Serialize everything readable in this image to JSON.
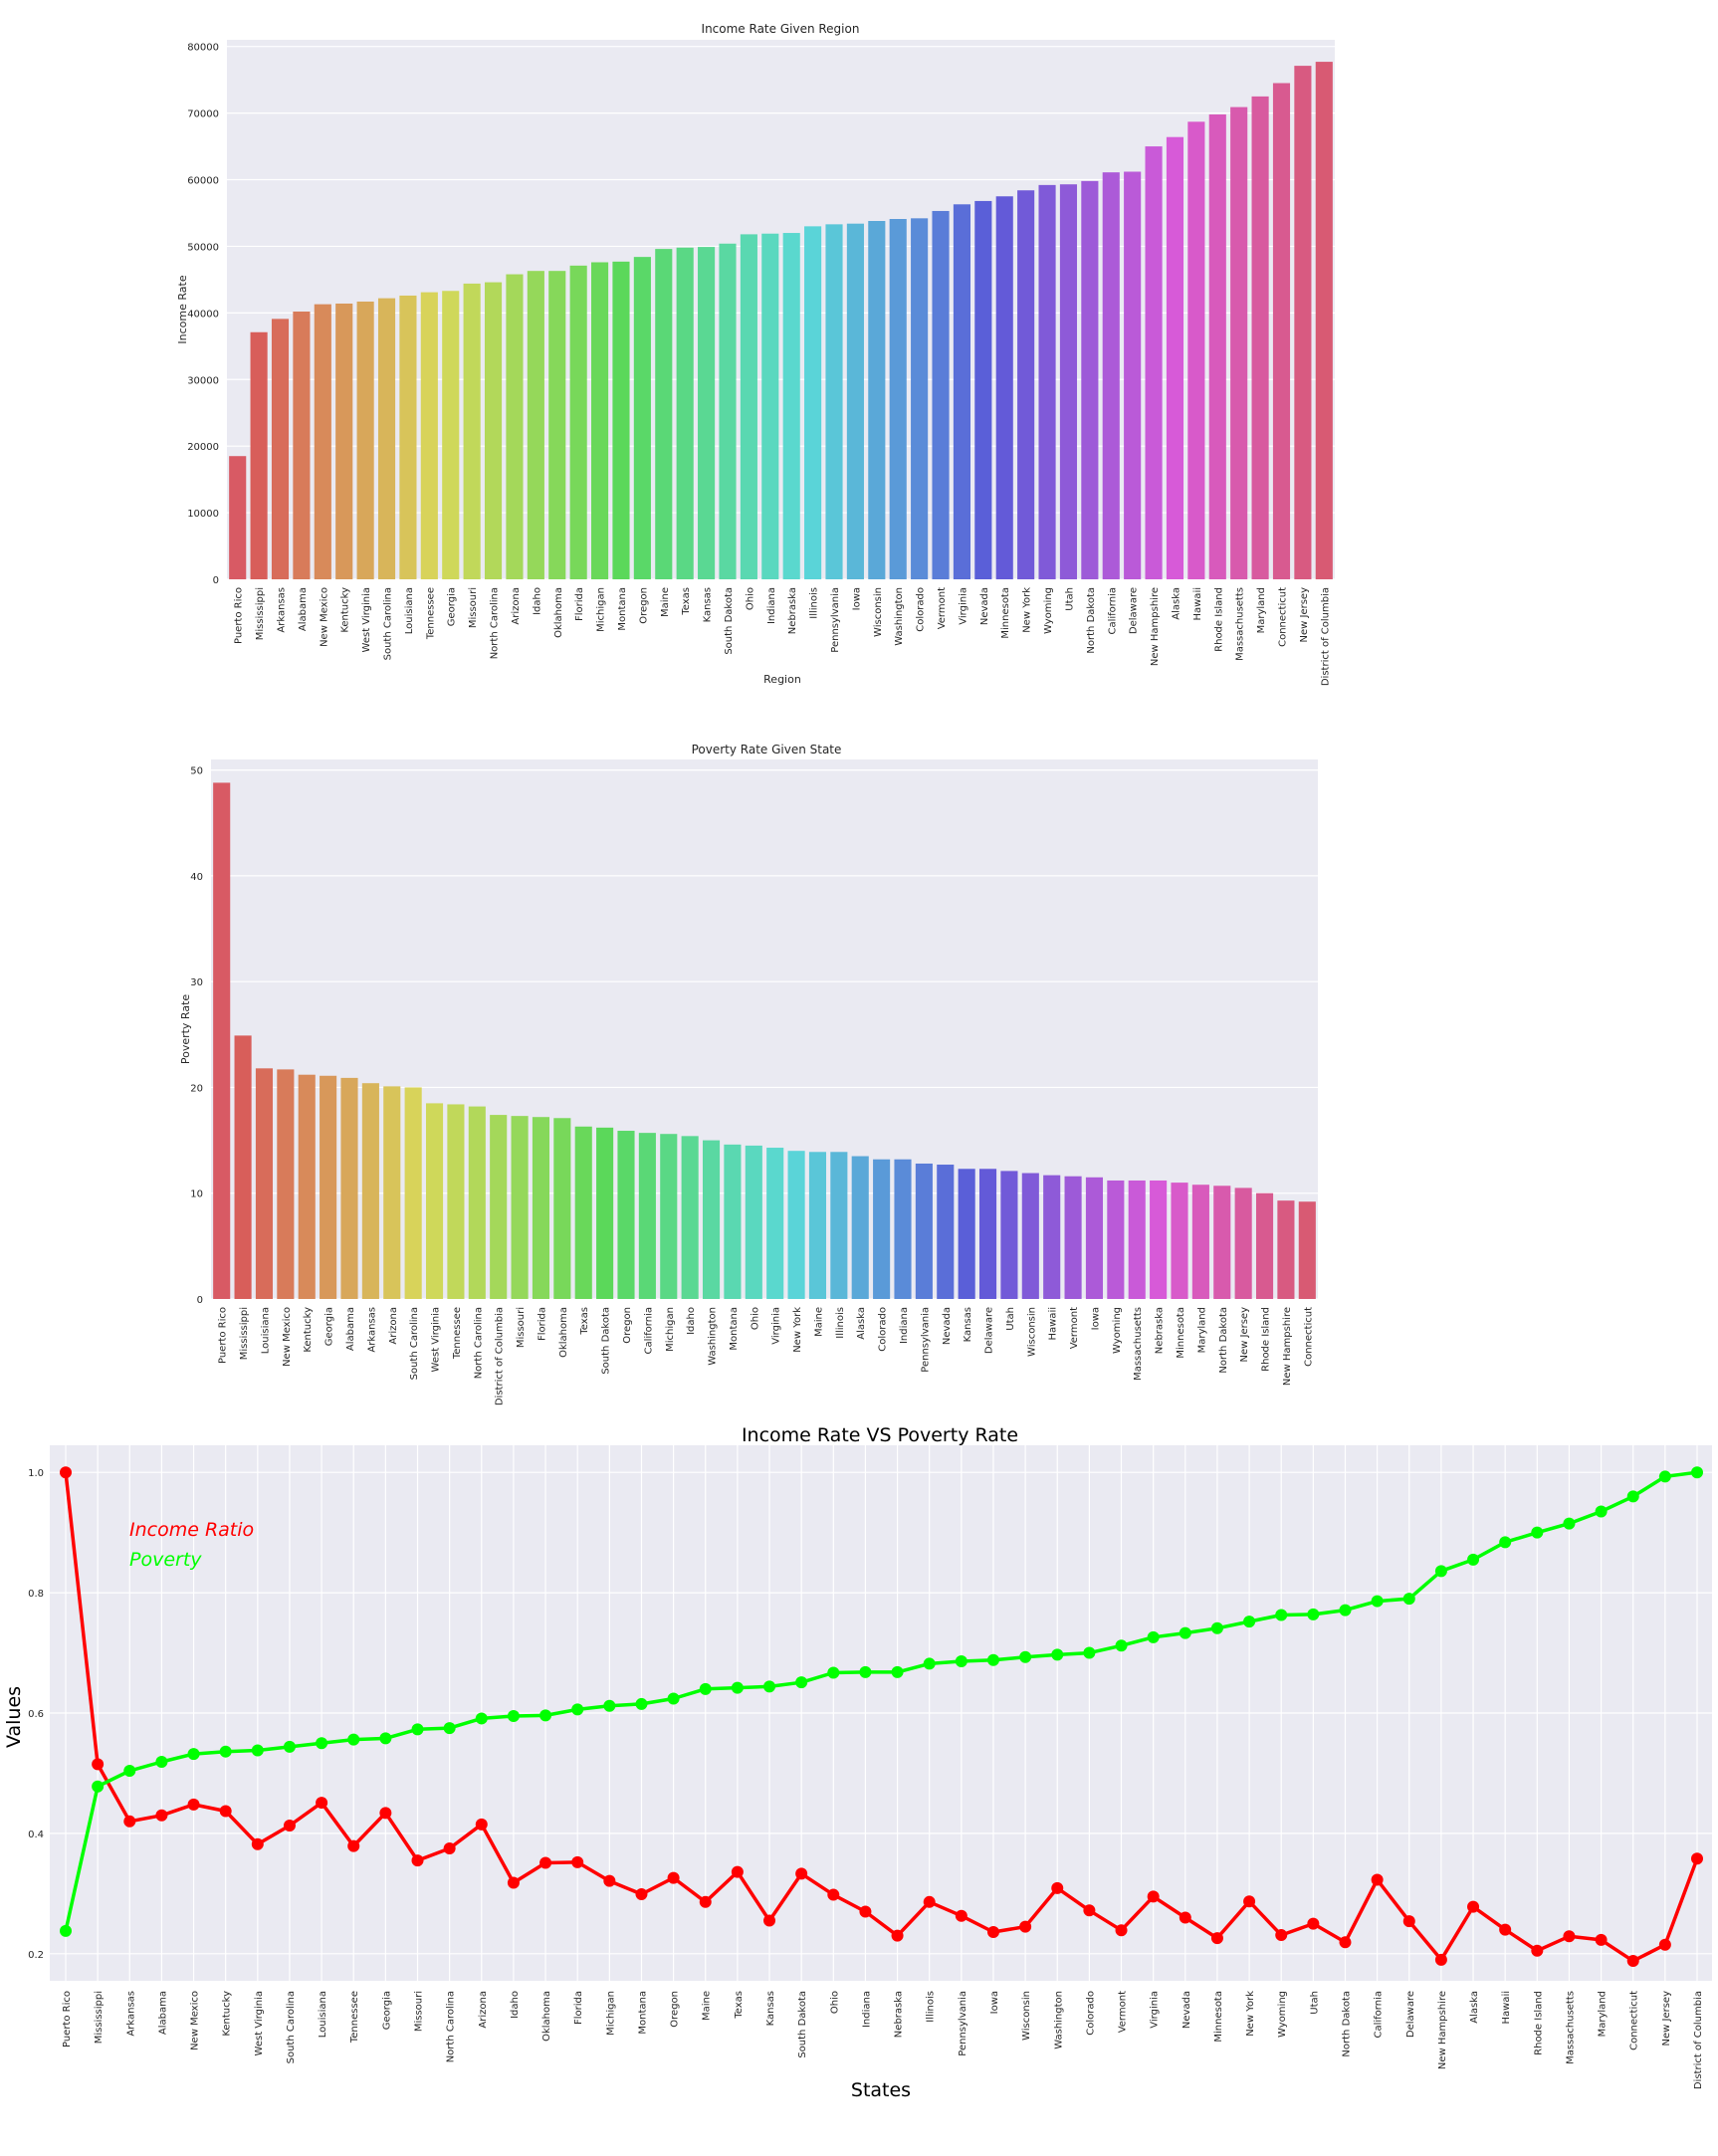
{
  "chart_data": [
    {
      "type": "bar",
      "title": "Income Rate Given Region",
      "xlabel": "Region",
      "ylabel": "Income Rate",
      "ylim": [
        0,
        81000
      ],
      "yticks": [
        0,
        10000,
        20000,
        30000,
        40000,
        50000,
        60000,
        70000,
        80000
      ],
      "grid": true,
      "categories": [
        "Puerto Rico",
        "Mississippi",
        "Arkansas",
        "Alabama",
        "New Mexico",
        "Kentucky",
        "West Virginia",
        "South Carolina",
        "Louisiana",
        "Tennessee",
        "Georgia",
        "Missouri",
        "North Carolina",
        "Arizona",
        "Idaho",
        "Oklahoma",
        "Florida",
        "Michigan",
        "Montana",
        "Oregon",
        "Maine",
        "Texas",
        "Kansas",
        "South Dakota",
        "Ohio",
        "Indiana",
        "Nebraska",
        "Illinois",
        "Pennsylvania",
        "Iowa",
        "Wisconsin",
        "Washington",
        "Colorado",
        "Vermont",
        "Virginia",
        "Nevada",
        "Minnesota",
        "New York",
        "Wyoming",
        "Utah",
        "North Dakota",
        "California",
        "Delaware",
        "New Hampshire",
        "Alaska",
        "Hawaii",
        "Rhode Island",
        "Massachusetts",
        "Maryland",
        "Connecticut",
        "New Jersey",
        "District of Columbia"
      ],
      "values": [
        18500,
        37100,
        39100,
        40200,
        41300,
        41400,
        41700,
        42200,
        42600,
        43100,
        43300,
        44400,
        44600,
        45800,
        46300,
        46300,
        47100,
        47600,
        47700,
        48400,
        49600,
        49800,
        49900,
        50400,
        51800,
        51900,
        52000,
        53000,
        53300,
        53400,
        53800,
        54100,
        54200,
        55300,
        56300,
        56800,
        57500,
        58400,
        59200,
        59300,
        59800,
        61100,
        61200,
        65000,
        66400,
        68700,
        69800,
        70900,
        72500,
        74500,
        77100,
        77700
      ]
    },
    {
      "type": "bar",
      "title": "Poverty Rate Given State",
      "xlabel": "",
      "ylabel": "Poverty Rate",
      "ylim": [
        0,
        51
      ],
      "yticks": [
        0,
        10,
        20,
        30,
        40,
        50
      ],
      "grid": true,
      "categories": [
        "Puerto Rico",
        "Mississippi",
        "Louisiana",
        "New Mexico",
        "Kentucky",
        "Georgia",
        "Alabama",
        "Arkansas",
        "Arizona",
        "South Carolina",
        "West Virginia",
        "Tennessee",
        "North Carolina",
        "District of Columbia",
        "Missouri",
        "Florida",
        "Oklahoma",
        "Texas",
        "South Dakota",
        "Oregon",
        "California",
        "Michigan",
        "Idaho",
        "Washington",
        "Montana",
        "Ohio",
        "Virginia",
        "New York",
        "Maine",
        "Illinois",
        "Alaska",
        "Colorado",
        "Indiana",
        "Pennsylvania",
        "Nevada",
        "Kansas",
        "Delaware",
        "Utah",
        "Wisconsin",
        "Hawaii",
        "Vermont",
        "Iowa",
        "Wyoming",
        "Massachusetts",
        "Nebraska",
        "Minnesota",
        "Maryland",
        "North Dakota",
        "New Jersey",
        "Rhode Island",
        "New Hampshire",
        "Connecticut"
      ],
      "values": [
        48.8,
        24.9,
        21.8,
        21.7,
        21.2,
        21.1,
        20.9,
        20.4,
        20.1,
        20.0,
        18.5,
        18.4,
        18.2,
        17.4,
        17.3,
        17.2,
        17.1,
        16.3,
        16.2,
        15.9,
        15.7,
        15.6,
        15.4,
        15.0,
        14.6,
        14.5,
        14.3,
        14.0,
        13.9,
        13.9,
        13.5,
        13.2,
        13.2,
        12.8,
        12.7,
        12.3,
        12.3,
        12.1,
        11.9,
        11.7,
        11.6,
        11.5,
        11.2,
        11.2,
        11.2,
        11.0,
        10.8,
        10.7,
        10.5,
        10.0,
        9.3,
        9.2
      ]
    },
    {
      "type": "line",
      "title": "Income Rate  VS  Poverty Rate",
      "xlabel": "States",
      "ylabel": "Values",
      "ylim": [
        0.155,
        1.045
      ],
      "yticks": [
        0.2,
        0.4,
        0.6,
        0.8,
        1.0
      ],
      "grid": true,
      "legend_placement": "top-left",
      "categories": [
        "Puerto Rico",
        "Mississippi",
        "Arkansas",
        "Alabama",
        "New Mexico",
        "Kentucky",
        "West Virginia",
        "South Carolina",
        "Louisiana",
        "Tennessee",
        "Georgia",
        "Missouri",
        "North Carolina",
        "Arizona",
        "Idaho",
        "Oklahoma",
        "Florida",
        "Michigan",
        "Montana",
        "Oregon",
        "Maine",
        "Texas",
        "Kansas",
        "South Dakota",
        "Ohio",
        "Indiana",
        "Nebraska",
        "Illinois",
        "Pennsylvania",
        "Iowa",
        "Wisconsin",
        "Washington",
        "Colorado",
        "Vermont",
        "Virginia",
        "Nevada",
        "Minnesota",
        "New York",
        "Wyoming",
        "Utah",
        "North Dakota",
        "California",
        "Delaware",
        "New Hampshire",
        "Alaska",
        "Hawaii",
        "Rhode Island",
        "Massachusetts",
        "Maryland",
        "Connecticut",
        "New Jersey",
        "District of Columbia"
      ],
      "series": [
        {
          "name": "Income Ratio",
          "color": "#ff0000",
          "values": [
            1.0,
            0.515,
            0.42,
            0.43,
            0.448,
            0.437,
            0.382,
            0.413,
            0.451,
            0.379,
            0.434,
            0.355,
            0.375,
            0.415,
            0.318,
            0.351,
            0.352,
            0.321,
            0.299,
            0.326,
            0.286,
            0.336,
            0.255,
            0.333,
            0.298,
            0.27,
            0.23,
            0.286,
            0.263,
            0.236,
            0.245,
            0.309,
            0.272,
            0.239,
            0.295,
            0.26,
            0.226,
            0.287,
            0.231,
            0.25,
            0.219,
            0.323,
            0.254,
            0.19,
            0.278,
            0.24,
            0.205,
            0.229,
            0.223,
            0.188,
            0.215,
            0.358
          ]
        },
        {
          "name": "Poverty",
          "color": "#00ff00",
          "values": [
            0.238,
            0.478,
            0.504,
            0.519,
            0.532,
            0.536,
            0.538,
            0.544,
            0.55,
            0.556,
            0.558,
            0.573,
            0.575,
            0.591,
            0.595,
            0.596,
            0.606,
            0.612,
            0.615,
            0.624,
            0.64,
            0.642,
            0.644,
            0.651,
            0.667,
            0.668,
            0.668,
            0.682,
            0.686,
            0.688,
            0.693,
            0.697,
            0.7,
            0.712,
            0.726,
            0.733,
            0.741,
            0.752,
            0.763,
            0.764,
            0.771,
            0.786,
            0.79,
            0.836,
            0.855,
            0.884,
            0.9,
            0.915,
            0.935,
            0.96,
            0.993,
            1.0
          ]
        }
      ]
    }
  ],
  "colors": {
    "panel_background": "#eaeaf2",
    "grid": "#ffffff",
    "text": "#262626"
  }
}
